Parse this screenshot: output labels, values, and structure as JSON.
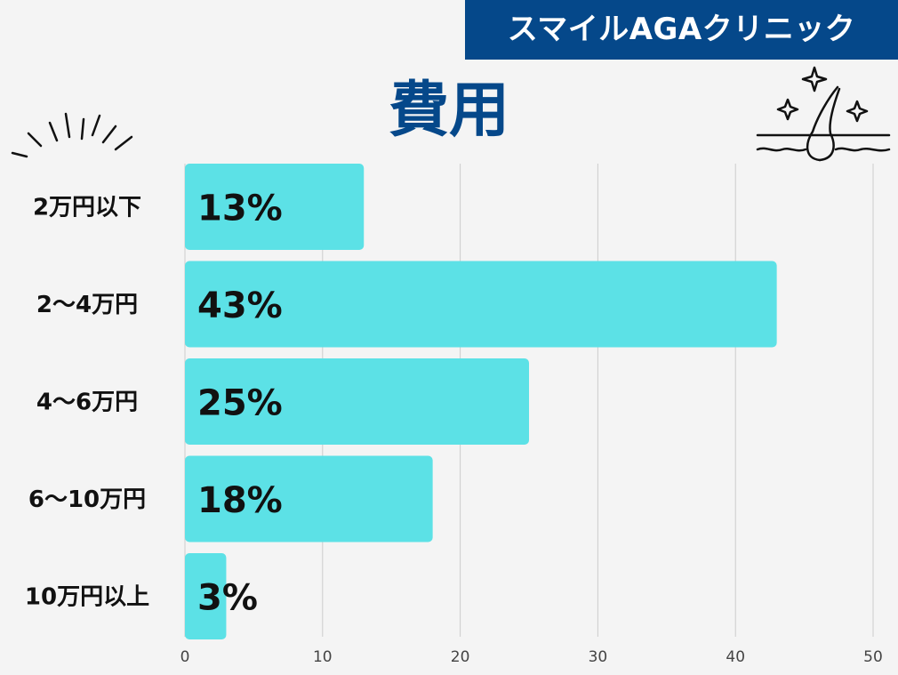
{
  "banner": {
    "text": "スマイルAGAクリニック"
  },
  "colors": {
    "banner_bg": "#05488a",
    "title": "#05488a",
    "bar": "#5ce1e6",
    "background": "#f4f4f4",
    "grid": "#cccccc"
  },
  "icons": [
    "burst-lines-icon",
    "sparkle-hair-icon"
  ],
  "chart_data": {
    "type": "bar",
    "orientation": "horizontal",
    "title": "費用",
    "categories": [
      "2万円以下",
      "2〜4万円",
      "4〜6万円",
      "6〜10万円",
      "10万円以上"
    ],
    "values": [
      13,
      43,
      25,
      18,
      3
    ],
    "data_labels": [
      "13%",
      "43%",
      "25%",
      "18%",
      "3%"
    ],
    "xlim": [
      0,
      50
    ],
    "xticks": [
      0,
      10,
      20,
      30,
      40,
      50
    ],
    "grid": "vertical",
    "legend": "none"
  }
}
